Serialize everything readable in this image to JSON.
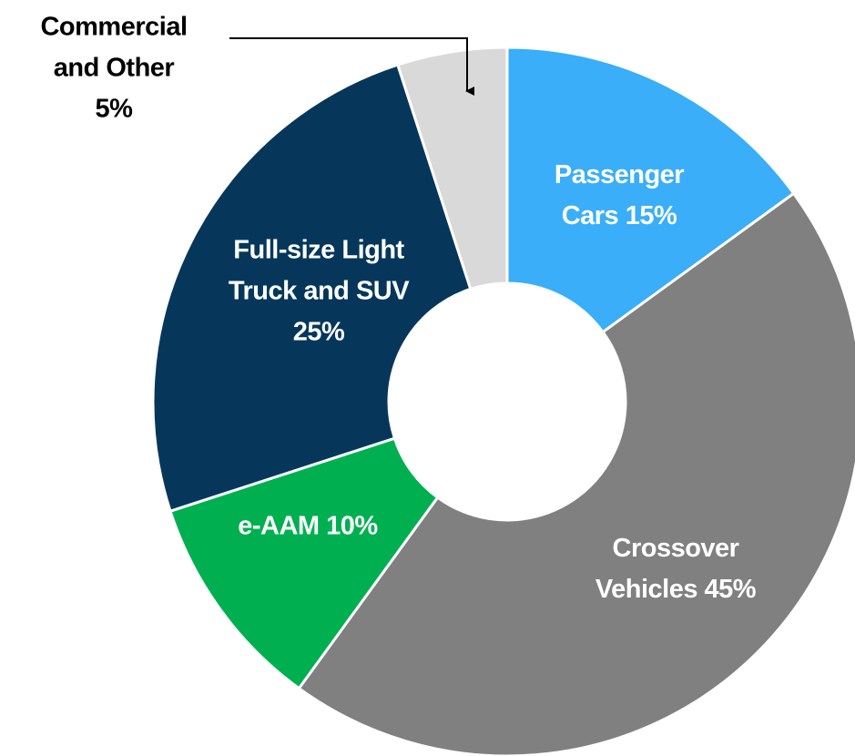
{
  "chart_data": {
    "type": "donut",
    "categories": [
      "Passenger Cars",
      "Crossover Vehicles",
      "e-AAM",
      "Full-size Light Truck and SUV",
      "Commercial and Other"
    ],
    "values": [
      15,
      45,
      10,
      25,
      5
    ],
    "value_labels": [
      "15%",
      "45%",
      "10%",
      "25%",
      "5%"
    ],
    "colors": [
      "#3aaef8",
      "#808080",
      "#00b050",
      "#06375b",
      "#d9d9d9"
    ]
  }
}
